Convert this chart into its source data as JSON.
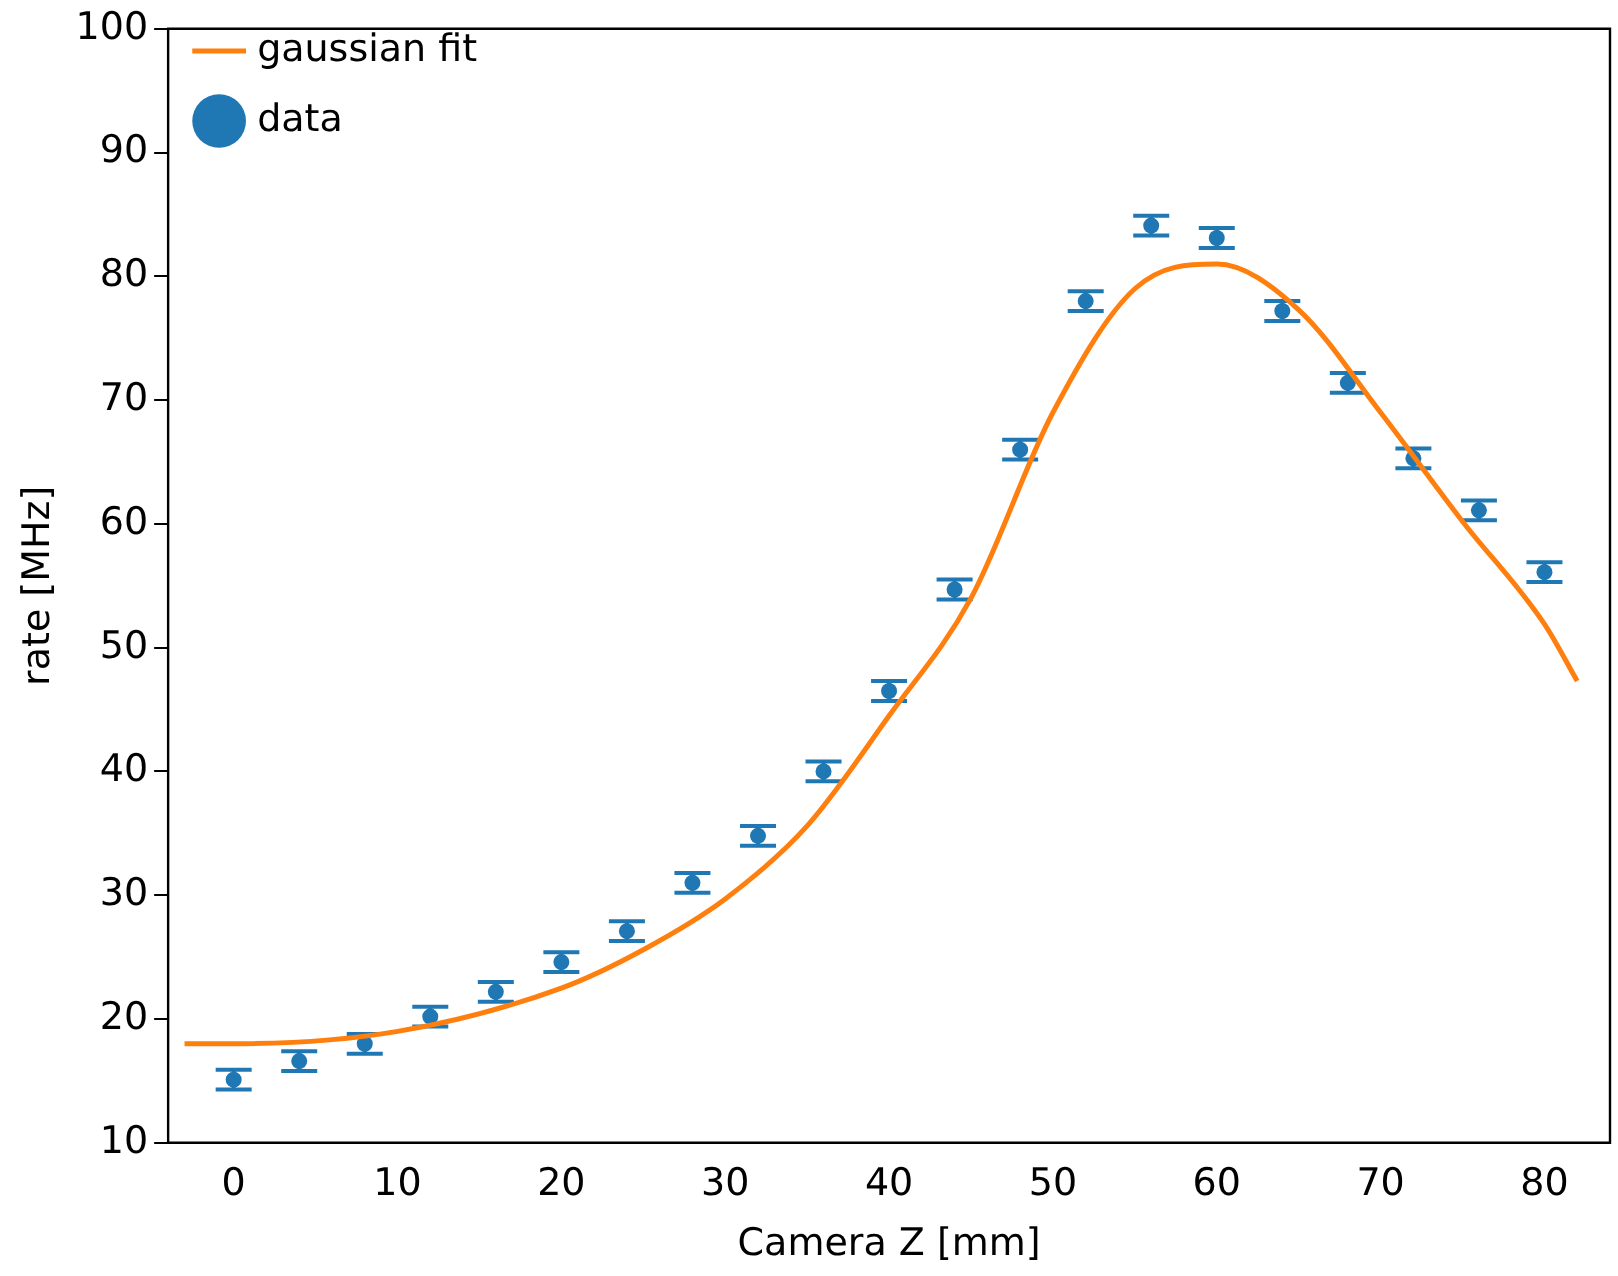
{
  "chart_data": {
    "type": "scatter",
    "xlabel": "Camera Z [mm]",
    "ylabel": "rate [MHz]",
    "xlim": [
      -4,
      84
    ],
    "xticks": [
      0,
      10,
      20,
      30,
      40,
      50,
      60,
      70,
      80
    ],
    "ylim": [
      10,
      100
    ],
    "yticks": [
      10,
      20,
      30,
      40,
      50,
      60,
      70,
      80,
      90,
      100
    ],
    "grid": false,
    "legend": "top left",
    "series": [
      {
        "name": "gaussian fit",
        "type": "line",
        "color": "#ff7f0e",
        "marker": "none",
        "x": [
          -3,
          0,
          10,
          20,
          25,
          30,
          35,
          40,
          45,
          50,
          55,
          60,
          65,
          70,
          75,
          80,
          82
        ],
        "values": [
          18.0,
          18.0,
          19.0,
          22.5,
          25.6,
          29.7,
          35.6,
          44.5,
          54,
          69,
          79,
          81,
          77.3,
          69,
          60.2,
          51.9,
          47.3
        ]
      },
      {
        "name": "data",
        "color": "#1f77b4",
        "marker": "circle",
        "x": [
          0,
          4,
          8,
          12,
          16,
          20,
          24,
          28,
          32,
          36,
          40,
          44,
          48,
          52,
          56,
          60,
          64,
          68,
          72,
          76,
          80
        ],
        "values": [
          15.1,
          16.6,
          18.0,
          20.2,
          22.2,
          24.6,
          27.1,
          31.0,
          34.8,
          40.0,
          46.5,
          54.7,
          66.0,
          78.0,
          84.1,
          83.1,
          77.2,
          71.4,
          65.3,
          61.1,
          56.1
        ],
        "errors": [
          0.8,
          0.8,
          0.8,
          0.8,
          0.8,
          0.8,
          0.8,
          0.8,
          0.8,
          0.8,
          0.8,
          0.8,
          0.8,
          0.8,
          0.8,
          0.8,
          0.8,
          0.8,
          0.8,
          0.8,
          0.8
        ]
      }
    ]
  }
}
